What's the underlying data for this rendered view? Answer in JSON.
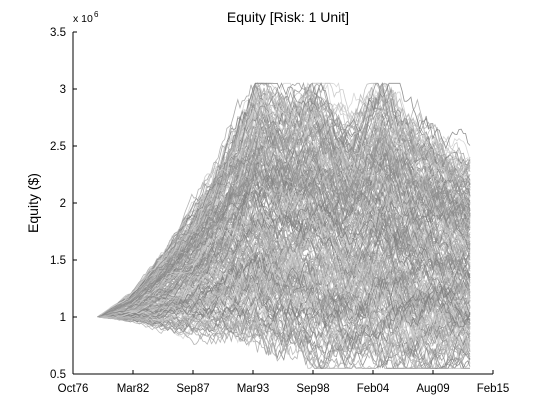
{
  "chart_data": {
    "type": "line",
    "title": "Equity [Risk: 1 Unit]",
    "ylabel": "Equity ($)",
    "xlabel": "",
    "y_multiplier_text": "x 10",
    "y_multiplier_exponent": "6",
    "x_ticks": [
      "Oct76",
      "Mar82",
      "Sep87",
      "Mar93",
      "Sep98",
      "Feb04",
      "Aug09",
      "Feb15"
    ],
    "y_ticks": [
      "0.5",
      "1",
      "1.5",
      "2",
      "2.5",
      "3",
      "3.5"
    ],
    "xlim": [
      1976.75,
      2015.1
    ],
    "ylim": [
      0.5,
      3.5
    ],
    "grid": false,
    "series_description_note": "",
    "start_year": 1979.0,
    "start_value": 1.0,
    "num_simulations": 260,
    "envelope": {
      "x": [
        1979.0,
        1982.0,
        1985.0,
        1988.0,
        1991.0,
        1993.5,
        1996.0,
        1999.0,
        2002.0,
        2005.0,
        2008.0,
        2011.0,
        2013.0
      ],
      "upper": [
        1.0,
        1.2,
        1.55,
        1.95,
        2.5,
        2.95,
        2.85,
        2.9,
        2.6,
        2.95,
        2.65,
        2.45,
        2.35
      ],
      "lower": [
        1.0,
        0.97,
        0.92,
        0.88,
        0.84,
        0.8,
        0.74,
        0.68,
        0.62,
        0.6,
        0.58,
        0.57,
        0.56
      ]
    },
    "line_colors": [
      "#9a9a9a",
      "#a8a8a8",
      "#b5b5b5",
      "#8c8c8c",
      "#c2c2c2",
      "#7f7f7f",
      "#d0d0d0"
    ]
  }
}
